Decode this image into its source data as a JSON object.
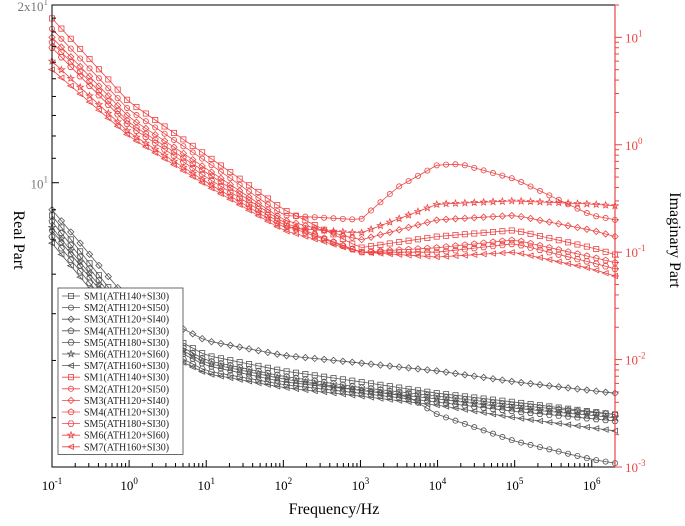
{
  "chart_data": {
    "type": "line",
    "xlabel": "Frequency/Hz",
    "ylabel_left": "Real Part",
    "ylabel_right": "Imaginary Part",
    "x_scale": "log",
    "y_left_scale": "log",
    "y_right_scale": "log",
    "xlim": [
      0.1,
      2000000
    ],
    "ylim_left": [
      3.3,
      20
    ],
    "ylim_right": [
      0.001,
      20
    ],
    "x_ticks": [
      {
        "value": 0.1,
        "base": "10",
        "exp": "-1"
      },
      {
        "value": 1,
        "base": "10",
        "exp": "0"
      },
      {
        "value": 10,
        "base": "10",
        "exp": "1"
      },
      {
        "value": 100,
        "base": "10",
        "exp": "2"
      },
      {
        "value": 1000,
        "base": "10",
        "exp": "3"
      },
      {
        "value": 10000,
        "base": "10",
        "exp": "4"
      },
      {
        "value": 100000,
        "base": "10",
        "exp": "5"
      },
      {
        "value": 1000000,
        "base": "10",
        "exp": "6"
      }
    ],
    "y_left_ticks": [
      {
        "value": 10,
        "label": "10",
        "base": "",
        "exp": "1"
      },
      {
        "value": 20,
        "label": "2x10",
        "base": "",
        "exp": "1"
      }
    ],
    "y_right_ticks": [
      {
        "value": 0.001,
        "base": "10",
        "exp": "-3"
      },
      {
        "value": 0.01,
        "base": "10",
        "exp": "-2"
      },
      {
        "value": 0.1,
        "base": "10",
        "exp": "-1"
      },
      {
        "value": 1,
        "base": "10",
        "exp": "0"
      },
      {
        "value": 10,
        "base": "10",
        "exp": "1"
      }
    ],
    "colors": {
      "real": "#555555",
      "imaginary": "#ee4444",
      "axis": "#000000"
    },
    "legend_position": "bottom-left",
    "series": [
      {
        "name": "SM1(ATH140+SI30)",
        "part": "real",
        "axis": "left",
        "marker": "square",
        "x": [
          0.1,
          1,
          10,
          100,
          1000,
          10000,
          100000,
          2000000
        ],
        "y": [
          8.8,
          6.0,
          5.1,
          4.8,
          4.6,
          4.4,
          4.25,
          4.05
        ]
      },
      {
        "name": "SM2(ATH120+SI50)",
        "part": "real",
        "axis": "left",
        "marker": "circle",
        "x": [
          0.1,
          1,
          10,
          100,
          1000,
          4000,
          10000,
          100000,
          1000000,
          2000000
        ],
        "y": [
          8.3,
          5.7,
          4.9,
          4.6,
          4.45,
          4.35,
          4.05,
          3.65,
          3.4,
          3.35
        ]
      },
      {
        "name": "SM3(ATH120+SI40)",
        "part": "real",
        "axis": "left",
        "marker": "diamond",
        "x": [
          0.1,
          1,
          10,
          100,
          1000,
          10000,
          100000,
          2000000
        ],
        "y": [
          9.0,
          6.3,
          5.4,
          5.1,
          4.95,
          4.8,
          4.6,
          4.4
        ]
      },
      {
        "name": "SM4(ATH120+SI30)",
        "part": "real",
        "axis": "left",
        "marker": "pentagon",
        "x": [
          0.1,
          1,
          10,
          100,
          1000,
          10000,
          100000,
          2000000
        ],
        "y": [
          8.6,
          5.9,
          5.0,
          4.7,
          4.5,
          4.35,
          4.2,
          4.05
        ]
      },
      {
        "name": "SM5(ATH180+SI30)",
        "part": "real",
        "axis": "left",
        "marker": "hexagon",
        "x": [
          0.1,
          1,
          10,
          100,
          1000,
          10000,
          100000,
          2000000
        ],
        "y": [
          8.1,
          5.6,
          4.8,
          4.55,
          4.4,
          4.25,
          4.1,
          3.95
        ]
      },
      {
        "name": "SM6(ATH120+SI60)",
        "part": "real",
        "axis": "left",
        "marker": "star",
        "x": [
          0.1,
          1,
          10,
          100,
          1000,
          10000,
          100000,
          2000000
        ],
        "y": [
          8.4,
          5.8,
          4.95,
          4.65,
          4.45,
          4.3,
          4.15,
          4.0
        ]
      },
      {
        "name": "SM7(ATH160+SI30)",
        "part": "real",
        "axis": "left",
        "marker": "triangle-left",
        "x": [
          0.1,
          1,
          10,
          100,
          1000,
          10000,
          100000,
          2000000
        ],
        "y": [
          7.9,
          5.5,
          4.75,
          4.5,
          4.35,
          4.2,
          4.0,
          3.8
        ]
      },
      {
        "name": "SM1(ATH140+SI30)",
        "part": "imaginary",
        "axis": "right",
        "marker": "square",
        "x": [
          0.1,
          1,
          10,
          100,
          1000,
          10000,
          100000,
          1000000,
          2000000
        ],
        "y": [
          15,
          2.5,
          0.8,
          0.25,
          0.11,
          0.14,
          0.16,
          0.11,
          0.095
        ]
      },
      {
        "name": "SM2(ATH120+SI50)",
        "part": "imaginary",
        "axis": "right",
        "marker": "circle",
        "x": [
          0.1,
          1,
          10,
          100,
          1000,
          3000,
          10000,
          20000,
          100000,
          1000000,
          2000000
        ],
        "y": [
          12,
          2.1,
          0.7,
          0.22,
          0.2,
          0.4,
          0.65,
          0.66,
          0.48,
          0.22,
          0.2
        ]
      },
      {
        "name": "SM3(ATH120+SI40)",
        "part": "imaginary",
        "axis": "right",
        "marker": "diamond",
        "x": [
          0.1,
          1,
          10,
          100,
          1000,
          10000,
          100000,
          1000000,
          2000000
        ],
        "y": [
          10,
          1.8,
          0.6,
          0.2,
          0.13,
          0.2,
          0.22,
          0.16,
          0.14
        ]
      },
      {
        "name": "SM4(ATH120+SI30)",
        "part": "imaginary",
        "axis": "right",
        "marker": "pentagon",
        "x": [
          0.1,
          1,
          10,
          100,
          1000,
          10000,
          100000,
          1000000,
          2000000
        ],
        "y": [
          9,
          1.6,
          0.55,
          0.19,
          0.1,
          0.11,
          0.13,
          0.09,
          0.08
        ]
      },
      {
        "name": "SM5(ATH180+SI30)",
        "part": "imaginary",
        "axis": "right",
        "marker": "hexagon",
        "x": [
          0.1,
          1,
          10,
          100,
          1000,
          10000,
          100000,
          1000000,
          2000000
        ],
        "y": [
          8,
          1.5,
          0.5,
          0.18,
          0.1,
          0.1,
          0.12,
          0.08,
          0.07
        ]
      },
      {
        "name": "SM6(ATH120+SI60)",
        "part": "imaginary",
        "axis": "right",
        "marker": "star",
        "x": [
          0.1,
          1,
          10,
          100,
          1000,
          10000,
          100000,
          1000000,
          2000000
        ],
        "y": [
          6,
          1.3,
          0.45,
          0.17,
          0.15,
          0.28,
          0.3,
          0.28,
          0.27
        ]
      },
      {
        "name": "SM7(ATH160+SI30)",
        "part": "imaginary",
        "axis": "right",
        "marker": "triangle-left",
        "x": [
          0.1,
          1,
          10,
          100,
          1000,
          10000,
          100000,
          1000000,
          2000000
        ],
        "y": [
          5,
          1.2,
          0.42,
          0.16,
          0.1,
          0.09,
          0.1,
          0.07,
          0.06
        ]
      }
    ]
  }
}
